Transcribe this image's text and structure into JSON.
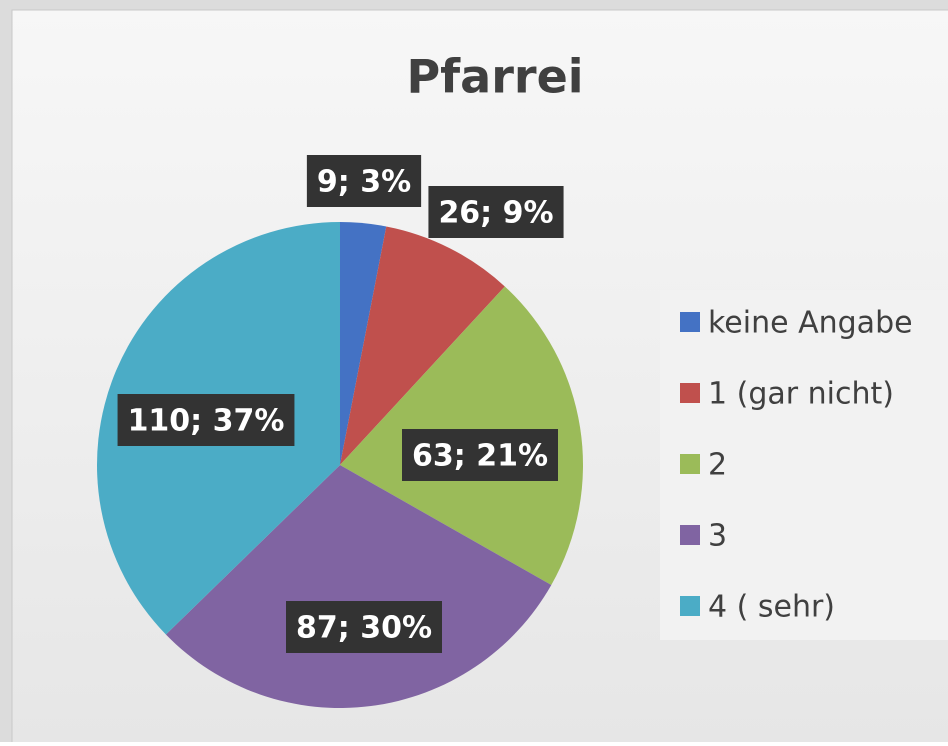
{
  "chart_data": {
    "type": "pie",
    "title": "Pfarrei",
    "categories": [
      "keine Angabe",
      "1 (gar nicht)",
      "2",
      "3",
      "4 ( sehr)"
    ],
    "values": [
      9,
      26,
      63,
      87,
      110
    ],
    "value_labels": [
      "9; 3%",
      "26; 9%",
      "63; 21%",
      "87; 30%",
      "110; 37%"
    ],
    "colors": [
      "#4472c4",
      "#c0504d",
      "#9bbb59",
      "#8064a2",
      "#4bacc6"
    ],
    "legend": "right"
  }
}
